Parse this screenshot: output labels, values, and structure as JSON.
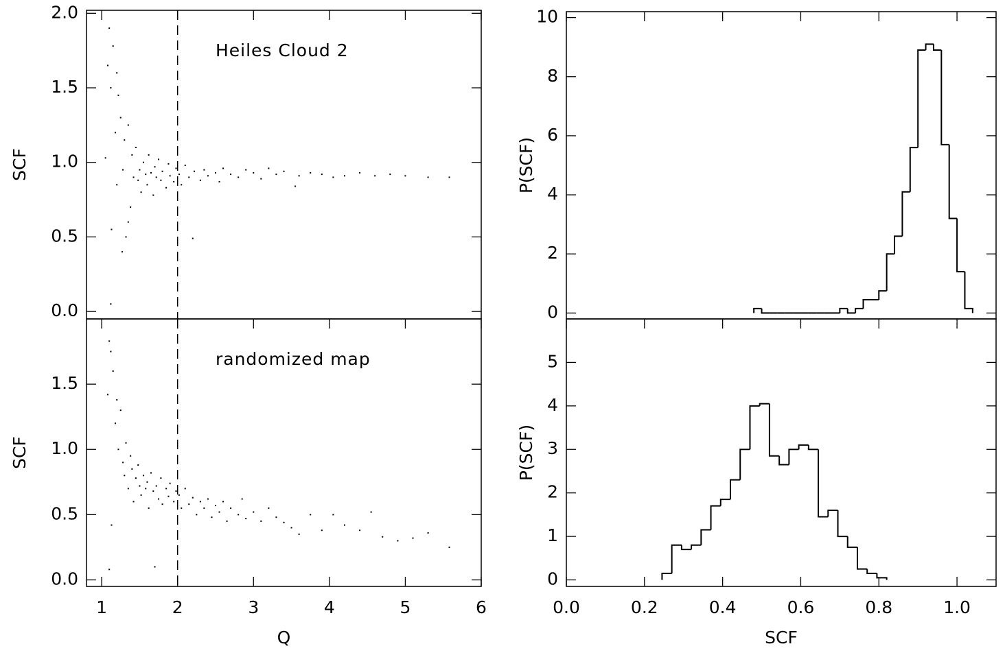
{
  "chart_data": [
    {
      "type": "scatter",
      "annotation": "Heiles Cloud 2",
      "ylabel": "SCF",
      "vline": 2,
      "xlim": [
        0.8,
        6
      ],
      "ylim": [
        -0.05,
        2.02
      ],
      "yticks": [
        {
          "value": 0.0,
          "label": "0.0"
        },
        0.5,
        {
          "value": 1.0,
          "label": "1.0"
        },
        1.5,
        {
          "value": 2.0,
          "label": "2.0"
        }
      ],
      "color": "#000000",
      "x": [
        1.1,
        1.12,
        1.15,
        1.08,
        1.2,
        1.13,
        1.22,
        1.25,
        1.18,
        1.27,
        1.3,
        1.32,
        1.35,
        1.28,
        1.4,
        1.38,
        1.42,
        1.45,
        1.48,
        1.5,
        1.52,
        1.55,
        1.58,
        1.6,
        1.62,
        1.65,
        1.68,
        1.7,
        1.72,
        1.75,
        1.78,
        1.8,
        1.85,
        1.88,
        1.9,
        1.95,
        1.98,
        2.02,
        2.05,
        2.1,
        2.15,
        2.2,
        2.22,
        2.3,
        2.35,
        2.4,
        2.5,
        2.55,
        2.6,
        2.7,
        2.8,
        2.9,
        3.0,
        3.1,
        3.2,
        3.3,
        3.4,
        3.55,
        3.6,
        3.75,
        3.9,
        4.05,
        4.2,
        4.4,
        4.6,
        4.8,
        5.0,
        5.3,
        5.58,
        1.12,
        1.2,
        1.05,
        1.35
      ],
      "values": [
        1.9,
        1.5,
        1.78,
        1.65,
        1.6,
        0.55,
        1.45,
        1.3,
        1.2,
        0.4,
        1.15,
        0.5,
        1.25,
        0.95,
        1.05,
        0.7,
        0.9,
        1.1,
        0.88,
        0.95,
        0.8,
        1.0,
        0.92,
        0.85,
        1.05,
        0.93,
        0.78,
        0.97,
        0.9,
        1.02,
        0.88,
        0.94,
        0.83,
        0.99,
        0.91,
        0.87,
        0.96,
        0.92,
        0.85,
        0.98,
        0.9,
        0.49,
        0.94,
        0.88,
        0.95,
        0.91,
        0.93,
        0.87,
        0.96,
        0.92,
        0.9,
        0.95,
        0.93,
        0.89,
        0.96,
        0.92,
        0.94,
        0.84,
        0.91,
        0.93,
        0.92,
        0.9,
        0.91,
        0.93,
        0.91,
        0.92,
        0.91,
        0.9,
        0.9,
        0.05,
        0.85,
        1.03,
        0.6
      ]
    },
    {
      "type": "scatter",
      "annotation": "randomized map",
      "ylabel": "SCF",
      "xlabel": "Q",
      "vline": 2,
      "xlim": [
        0.8,
        6
      ],
      "ylim": [
        -0.05,
        2.0
      ],
      "xticks": [
        1,
        2,
        3,
        4,
        5,
        6
      ],
      "yticks": [
        {
          "value": 0.0,
          "label": "0.0"
        },
        0.5,
        {
          "value": 1.0,
          "label": "1.0"
        },
        1.5
      ],
      "color": "#000000",
      "x": [
        1.1,
        1.12,
        1.08,
        1.15,
        1.18,
        1.2,
        1.13,
        1.22,
        1.25,
        1.28,
        1.3,
        1.32,
        1.35,
        1.38,
        1.4,
        1.42,
        1.45,
        1.48,
        1.5,
        1.52,
        1.55,
        1.58,
        1.6,
        1.62,
        1.65,
        1.68,
        1.7,
        1.72,
        1.75,
        1.78,
        1.8,
        1.85,
        1.88,
        1.9,
        1.95,
        1.98,
        2.02,
        2.05,
        2.1,
        2.15,
        2.2,
        2.25,
        2.3,
        2.35,
        2.4,
        2.45,
        2.5,
        2.55,
        2.6,
        2.65,
        2.7,
        2.8,
        2.85,
        2.9,
        3.0,
        3.1,
        3.2,
        3.3,
        3.4,
        3.5,
        3.6,
        3.75,
        3.9,
        4.05,
        4.2,
        4.4,
        4.55,
        4.7,
        4.9,
        5.1,
        5.3,
        5.58,
        1.1
      ],
      "values": [
        1.83,
        1.75,
        1.42,
        1.6,
        1.2,
        1.38,
        0.42,
        1.0,
        1.3,
        0.9,
        0.8,
        1.05,
        0.7,
        0.95,
        0.85,
        0.6,
        0.78,
        0.88,
        0.72,
        0.65,
        0.8,
        0.7,
        0.75,
        0.55,
        0.82,
        0.68,
        0.1,
        0.72,
        0.62,
        0.78,
        0.58,
        0.7,
        0.64,
        0.74,
        0.6,
        0.68,
        0.65,
        0.55,
        0.7,
        0.58,
        0.63,
        0.5,
        0.6,
        0.55,
        0.62,
        0.48,
        0.57,
        0.52,
        0.6,
        0.45,
        0.55,
        0.5,
        0.62,
        0.47,
        0.52,
        0.45,
        0.55,
        0.48,
        0.44,
        0.4,
        0.35,
        0.5,
        0.38,
        0.5,
        0.42,
        0.38,
        0.52,
        0.33,
        0.3,
        0.32,
        0.36,
        0.25,
        0.08
      ]
    },
    {
      "type": "histogram",
      "ylabel": "P(SCF)",
      "xlim": [
        0,
        1.1
      ],
      "ylim": [
        -0.2,
        10.2
      ],
      "yticks": [
        0,
        2,
        4,
        6,
        8,
        10
      ],
      "color": "#000000",
      "bins": [
        0.48,
        0.5,
        0.52,
        0.54,
        0.56,
        0.58,
        0.6,
        0.62,
        0.64,
        0.66,
        0.68,
        0.7,
        0.72,
        0.74,
        0.76,
        0.78,
        0.8,
        0.82,
        0.84,
        0.86,
        0.88,
        0.9,
        0.92,
        0.94,
        0.96,
        0.98,
        1.0,
        1.02,
        1.04
      ],
      "counts": [
        0.15,
        0,
        0,
        0,
        0,
        0,
        0,
        0,
        0,
        0,
        0,
        0.15,
        0,
        0.15,
        0.45,
        0.45,
        0.75,
        2.0,
        2.6,
        4.1,
        5.6,
        8.9,
        9.1,
        8.9,
        5.7,
        3.2,
        1.4,
        0.15
      ]
    },
    {
      "type": "histogram",
      "ylabel": "P(SCF)",
      "xlabel": "SCF",
      "xlim": [
        0,
        1.1
      ],
      "ylim": [
        -0.15,
        6.0
      ],
      "xticks": [
        {
          "value": 0.0,
          "label": "0.0"
        },
        0.2,
        0.4,
        0.6,
        0.8,
        {
          "value": 1.0,
          "label": "1.0"
        }
      ],
      "yticks": [
        0,
        1,
        2,
        3,
        4,
        5
      ],
      "color": "#000000",
      "bins": [
        0.245,
        0.27,
        0.295,
        0.32,
        0.345,
        0.37,
        0.395,
        0.42,
        0.445,
        0.47,
        0.495,
        0.52,
        0.545,
        0.57,
        0.595,
        0.62,
        0.645,
        0.67,
        0.695,
        0.72,
        0.745,
        0.77,
        0.795,
        0.82
      ],
      "counts": [
        0.15,
        0.8,
        0.7,
        0.8,
        1.15,
        1.7,
        1.85,
        2.3,
        3.0,
        4.0,
        4.05,
        2.85,
        2.65,
        3.0,
        3.1,
        3.0,
        1.45,
        1.6,
        1.0,
        0.75,
        0.25,
        0.15,
        0.05
      ]
    }
  ]
}
